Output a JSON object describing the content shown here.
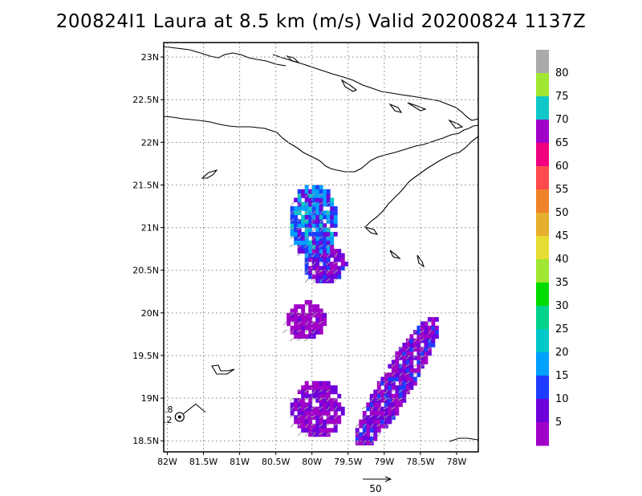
{
  "title": "200824I1 Laura at 8.5 km (m/s) Valid 20200824  1137Z",
  "axes": {
    "lat_labels": [
      "23N",
      "22.5N",
      "22N",
      "21.5N",
      "21N",
      "20.5N",
      "20N",
      "19.5N",
      "19N",
      "18.5N"
    ],
    "lat_values": [
      23,
      22.5,
      22,
      21.5,
      21,
      20.5,
      20,
      19.5,
      19,
      18.5
    ],
    "lon_labels": [
      "82W",
      "81.5W",
      "81W",
      "80.5W",
      "80W",
      "79.5W",
      "79W",
      "78.5W",
      "78W"
    ],
    "lon_values": [
      -82,
      -81.5,
      -81,
      -80.5,
      -80,
      -79.5,
      -79,
      -78.5,
      -78
    ],
    "lat_range": [
      18.37,
      23.17
    ],
    "lon_range": [
      -82.05,
      -77.7
    ],
    "grid": "dotted"
  },
  "colorbar": {
    "labels": [
      "80",
      "75",
      "70",
      "65",
      "60",
      "55",
      "50",
      "45",
      "40",
      "35",
      "30",
      "25",
      "20",
      "15",
      "10",
      "5"
    ],
    "levels_top_to_bottom": [
      {
        "value": ">80",
        "color": "#aaaaaa"
      },
      {
        "value": "75-80",
        "color": "#a0e632"
      },
      {
        "value": "70-75",
        "color": "#10c8c8"
      },
      {
        "value": "65-70",
        "color": "#a000c8"
      },
      {
        "value": "60-65",
        "color": "#f0007f"
      },
      {
        "value": "55-60",
        "color": "#ff4b4b"
      },
      {
        "value": "50-55",
        "color": "#f0822a"
      },
      {
        "value": "45-50",
        "color": "#e6af2d"
      },
      {
        "value": "40-45",
        "color": "#e6dc32"
      },
      {
        "value": "35-40",
        "color": "#a0e632"
      },
      {
        "value": "30-35",
        "color": "#00dc00"
      },
      {
        "value": "25-30",
        "color": "#00d28c"
      },
      {
        "value": "20-25",
        "color": "#00c8c8"
      },
      {
        "value": "15-20",
        "color": "#00a0ff"
      },
      {
        "value": "10-15",
        "color": "#1e3cff"
      },
      {
        "value": "5-10",
        "color": "#6e00dc"
      },
      {
        "value": "0-5",
        "color": "#a000c8"
      }
    ]
  },
  "storm_center": {
    "lon": -81.83,
    "lat": 18.78,
    "label_top": ".8",
    "label_bottom": ".2",
    "icon": "hurricane-symbol-icon"
  },
  "reference_vector": {
    "label": "50"
  }
}
